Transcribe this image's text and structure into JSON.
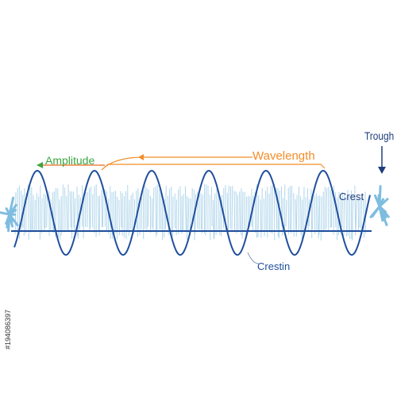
{
  "labels": {
    "amplitude": "Amplitude",
    "wavelength": "Wavelength",
    "crest": "Crest",
    "crestin": "Crestin",
    "trough": "Trough"
  },
  "watermark_id": "#194086397"
}
